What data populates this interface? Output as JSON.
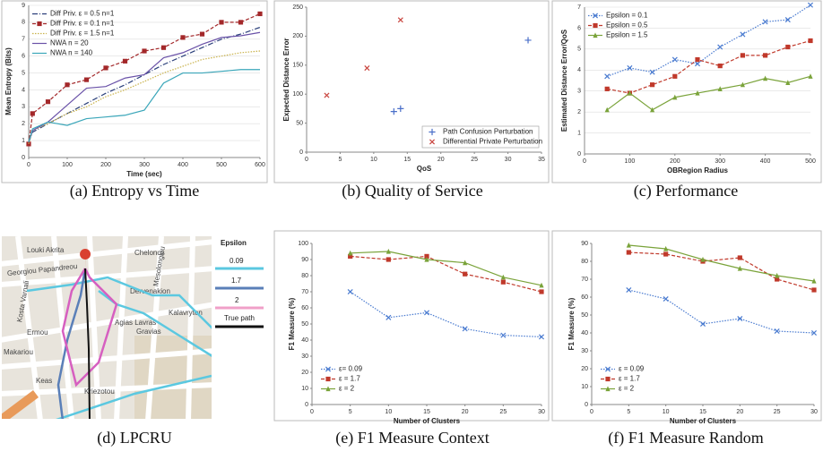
{
  "chart_data": [
    {
      "type": "line",
      "caption": "(a) Entropy vs Time",
      "xlabel": "Time (sec)",
      "ylabel": "Mean Entropy (Bits)",
      "x": [
        0,
        10,
        50,
        100,
        150,
        200,
        250,
        300,
        350,
        400,
        450,
        500,
        550,
        600
      ],
      "xlim": [
        0,
        600
      ],
      "xticks": [
        0,
        100,
        200,
        300,
        400,
        500,
        600
      ],
      "ylim": [
        0,
        9
      ],
      "yticks": [
        0,
        1,
        2,
        3,
        4,
        5,
        6,
        7,
        8,
        9
      ],
      "grid": true,
      "legend": "upper left",
      "series": [
        {
          "name": "Diff Priv. ε = 0.5   n=1",
          "color": "#2a3f7a",
          "dash": "dashdot",
          "marker": "none",
          "values": [
            0.9,
            1.5,
            2.0,
            2.6,
            3.2,
            3.8,
            4.3,
            4.9,
            5.5,
            6.0,
            6.5,
            7.0,
            7.3,
            7.7
          ]
        },
        {
          "name": "Diff Priv. ε = 0.1   n=1",
          "color": "#a3282a",
          "dash": "dashed",
          "marker": "square",
          "values": [
            0.8,
            2.6,
            3.3,
            4.3,
            4.6,
            5.3,
            5.7,
            6.3,
            6.5,
            7.1,
            7.3,
            8.0,
            8.0,
            8.5
          ]
        },
        {
          "name": "Diff Priv. ε = 1.5   n=1",
          "color": "#c9b24a",
          "dash": "dotted",
          "marker": "none",
          "values": [
            0.8,
            1.6,
            2.0,
            2.6,
            3.0,
            3.6,
            4.0,
            4.5,
            5.0,
            5.4,
            5.8,
            6.0,
            6.2,
            6.3
          ]
        },
        {
          "name": "NWA n = 20",
          "color": "#6a52a8",
          "dash": "solid",
          "marker": "none",
          "values": [
            0.9,
            1.6,
            2.1,
            3.1,
            4.1,
            4.2,
            4.7,
            4.9,
            5.9,
            6.2,
            6.7,
            7.1,
            7.2,
            7.4
          ]
        },
        {
          "name": "NWA n = 140",
          "color": "#3aa6b9",
          "dash": "solid",
          "marker": "none",
          "values": [
            0.9,
            1.7,
            2.1,
            1.9,
            2.3,
            2.4,
            2.5,
            2.8,
            4.4,
            5.0,
            5.0,
            5.1,
            5.2,
            5.2
          ]
        }
      ]
    },
    {
      "type": "scatter",
      "caption": "(b) Quality of Service",
      "xlabel": "QoS",
      "ylabel": "Expected Distance Error",
      "xlim": [
        0,
        35
      ],
      "xticks": [
        0,
        5,
        10,
        15,
        20,
        25,
        30,
        35
      ],
      "ylim": [
        0,
        250
      ],
      "yticks": [
        0,
        50,
        100,
        150,
        200,
        250
      ],
      "grid": false,
      "legend": "lower right",
      "series": [
        {
          "name": "Path Confusion Perturbation",
          "color": "#4a6fc9",
          "marker": "plus",
          "x": [
            13,
            14,
            33
          ],
          "values": [
            70,
            75,
            193
          ]
        },
        {
          "name": "Differential Private Perturbation",
          "color": "#c9453f",
          "marker": "x",
          "x": [
            3,
            9,
            14
          ],
          "values": [
            98,
            145,
            228
          ]
        }
      ]
    },
    {
      "type": "line",
      "caption": "(c) Performance",
      "xlabel": "OBRegion Radius",
      "ylabel": "Estimated Distance Error/QoS",
      "x": [
        50,
        100,
        150,
        200,
        250,
        300,
        350,
        400,
        450,
        500
      ],
      "xlim": [
        0,
        500
      ],
      "xticks": [
        0,
        100,
        200,
        300,
        400,
        500
      ],
      "ylim": [
        0,
        7
      ],
      "yticks": [
        0,
        1,
        2,
        3,
        4,
        5,
        6,
        7
      ],
      "grid": true,
      "legend": "upper left",
      "series": [
        {
          "name": "Epsilon = 0.1",
          "color": "#4a7bd0",
          "dash": "dotted",
          "marker": "x",
          "values": [
            3.7,
            4.1,
            3.9,
            4.5,
            4.3,
            5.1,
            5.7,
            6.3,
            6.4,
            7.1
          ]
        },
        {
          "name": "Epsilon = 0.5",
          "color": "#c0392b",
          "dash": "dashed",
          "marker": "square",
          "values": [
            3.1,
            2.9,
            3.3,
            3.7,
            4.5,
            4.2,
            4.7,
            4.7,
            5.1,
            5.4
          ]
        },
        {
          "name": "Epsilon = 1.5",
          "color": "#7aa33a",
          "dash": "solid",
          "marker": "triangle",
          "values": [
            2.1,
            2.9,
            2.1,
            2.7,
            2.9,
            3.1,
            3.3,
            3.6,
            3.4,
            3.7
          ]
        }
      ]
    },
    {
      "type": "line",
      "caption": "(e) F1 Measure Context",
      "xlabel": "Number of Clusters",
      "ylabel": "F1 Measure (%)",
      "x": [
        5,
        10,
        15,
        20,
        25,
        30
      ],
      "xlim": [
        0,
        30
      ],
      "xticks": [
        0,
        5,
        10,
        15,
        20,
        25,
        30
      ],
      "ylim": [
        0,
        100
      ],
      "yticks": [
        0,
        10,
        20,
        30,
        40,
        50,
        60,
        70,
        80,
        90,
        100
      ],
      "grid": false,
      "legend": "lower left",
      "series": [
        {
          "name": "ε= 0.09",
          "color": "#4a7bd0",
          "dash": "dotted",
          "marker": "x",
          "values": [
            70,
            54,
            57,
            47,
            43,
            42
          ]
        },
        {
          "name": "ε = 1.7",
          "color": "#c0392b",
          "dash": "dashed",
          "marker": "square",
          "values": [
            92,
            90,
            92,
            81,
            76,
            70
          ]
        },
        {
          "name": "ε = 2",
          "color": "#7aa33a",
          "dash": "solid",
          "marker": "triangle",
          "values": [
            94,
            95,
            90,
            88,
            79,
            74
          ]
        }
      ]
    },
    {
      "type": "line",
      "caption": "(f) F1 Measure Random",
      "xlabel": "Number of Clusters",
      "ylabel": "F1 Measure (%)",
      "x": [
        5,
        10,
        15,
        20,
        25,
        30
      ],
      "xlim": [
        0,
        30
      ],
      "xticks": [
        0,
        5,
        10,
        15,
        20,
        25,
        30
      ],
      "ylim": [
        0,
        90
      ],
      "yticks": [
        0,
        10,
        20,
        30,
        40,
        50,
        60,
        70,
        80,
        90
      ],
      "grid": false,
      "legend": "lower left",
      "series": [
        {
          "name": "ε = 0.09",
          "color": "#4a7bd0",
          "dash": "dotted",
          "marker": "x",
          "values": [
            64,
            59,
            45,
            48,
            41,
            40
          ]
        },
        {
          "name": "ε = 1.7",
          "color": "#c0392b",
          "dash": "dashed",
          "marker": "square",
          "values": [
            85,
            84,
            80,
            82,
            70,
            64
          ]
        },
        {
          "name": "ε = 2",
          "color": "#7aa33a",
          "dash": "solid",
          "marker": "triangle",
          "values": [
            89,
            87,
            81,
            76,
            72,
            69
          ]
        }
      ]
    }
  ],
  "map": {
    "caption": "(d) LPCRU",
    "legend": {
      "title": "Epsilon",
      "entries": [
        "0.09",
        "1.7",
        "2",
        "True path"
      ]
    },
    "streets": [
      "Louki Akrita",
      "Georgiou Papandreou",
      "Kosta Varnali",
      "Ermou",
      "Makariou",
      "Dervenakion",
      "Mesolongiou",
      "Chelonos",
      "Agias Lavras",
      "Gravias",
      "Kalavryton",
      "Kriezotou",
      "Keas"
    ]
  }
}
